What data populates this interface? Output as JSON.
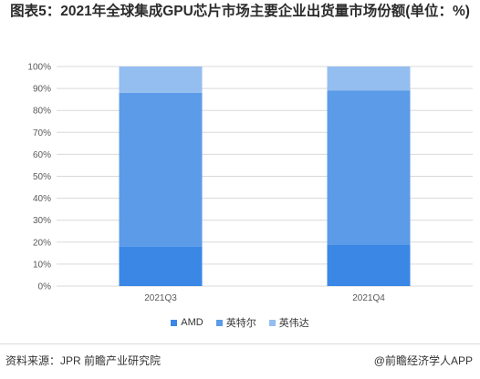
{
  "chart_data": {
    "type": "bar",
    "stacked": true,
    "title": "图表5：2021年全球集成GPU芯片市场主要企业出货量市场份额(单位：%)",
    "categories": [
      "2021Q3",
      "2021Q4"
    ],
    "series": [
      {
        "name": "AMD",
        "values": [
          18,
          19
        ],
        "color": "#3a87e6"
      },
      {
        "name": "英特尔",
        "values": [
          70,
          70
        ],
        "color": "#5b9be8"
      },
      {
        "name": "英伟达",
        "values": [
          12,
          11
        ],
        "color": "#94bdf0"
      }
    ],
    "yticks": [
      "0%",
      "10%",
      "20%",
      "30%",
      "40%",
      "50%",
      "60%",
      "70%",
      "80%",
      "90%",
      "100%"
    ],
    "ylim": [
      0,
      100
    ],
    "grid": true,
    "legend_position": "bottom"
  },
  "footer": {
    "source": "资料来源：JPR 前瞻产业研究院",
    "brand": "@前瞻经济学人APP"
  }
}
